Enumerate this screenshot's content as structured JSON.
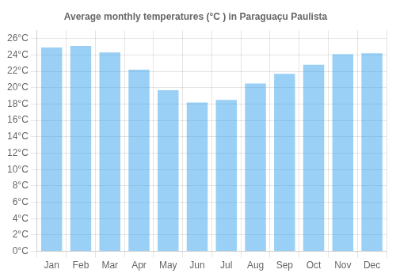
{
  "chart_data": {
    "type": "bar",
    "title": "Average monthly temperatures (°C ) in Paraguaçu Paulista",
    "categories": [
      "Jan",
      "Feb",
      "Mar",
      "Apr",
      "May",
      "Jun",
      "Jul",
      "Aug",
      "Sep",
      "Oct",
      "Nov",
      "Dec"
    ],
    "values": [
      24.9,
      25.1,
      24.3,
      22.2,
      19.7,
      18.2,
      18.5,
      20.5,
      21.7,
      22.8,
      24.1,
      24.2
    ],
    "ylim": [
      0,
      27
    ],
    "yticks": [
      {
        "value": 0,
        "label": "0°C"
      },
      {
        "value": 2,
        "label": "2°C"
      },
      {
        "value": 4,
        "label": "4°C"
      },
      {
        "value": 6,
        "label": "6°C"
      },
      {
        "value": 8,
        "label": "8°C"
      },
      {
        "value": 10,
        "label": "10°C"
      },
      {
        "value": 12,
        "label": "12°C"
      },
      {
        "value": 14,
        "label": "14°C"
      },
      {
        "value": 16,
        "label": "16°C"
      },
      {
        "value": 18,
        "label": "18°C"
      },
      {
        "value": 20,
        "label": "20°C"
      },
      {
        "value": 22,
        "label": "22°C"
      },
      {
        "value": 24,
        "label": "24°C"
      },
      {
        "value": 26,
        "label": "26°C"
      }
    ],
    "grid": true
  }
}
